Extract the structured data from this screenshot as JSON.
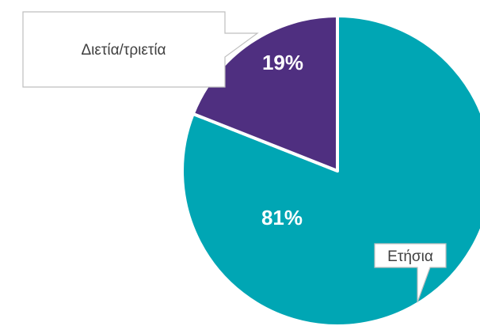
{
  "chart_data": {
    "type": "pie",
    "title": "",
    "start_angle_deg": 0,
    "direction": "clockwise",
    "slices": [
      {
        "label": "Ετήσια",
        "value": 81,
        "value_label": "81%",
        "color": "#00A6B4"
      },
      {
        "label": "Διετία/τριετία",
        "value": 19,
        "value_label": "19%",
        "color": "#4F2F80"
      }
    ],
    "legend": "none",
    "slice_border_color": "#ffffff"
  }
}
